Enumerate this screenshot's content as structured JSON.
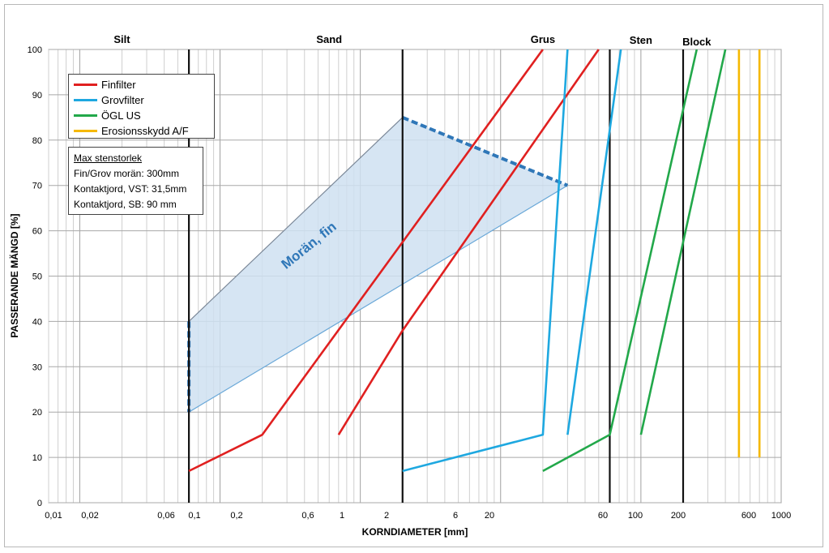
{
  "chart_data": {
    "type": "line",
    "xscale": "log",
    "xlabel": "KORNDIAMETER [mm]",
    "ylabel": "PASSERANDE MÄNGD [%]",
    "ylim": [
      0,
      100
    ],
    "yticks": [
      0,
      10,
      20,
      30,
      40,
      50,
      60,
      70,
      80,
      90,
      100
    ],
    "xtick_labels": [
      "0,01",
      "0,02",
      "0,06",
      "0,1",
      "0,2",
      "0,6",
      "1",
      "2",
      "6",
      "20",
      "60",
      "100",
      "200",
      "600",
      "1000"
    ],
    "grid": true,
    "legend_position": "top-left",
    "zones": [
      "Silt",
      "Sand",
      "Grus",
      "Sten",
      "Block"
    ],
    "shaded_region_label": "Morän, fin",
    "legend": [
      {
        "name": "Finfilter",
        "color": "#e02020"
      },
      {
        "name": "Grovfilter",
        "color": "#1ea8e0"
      },
      {
        "name": "ÖGL US",
        "color": "#22a84a"
      },
      {
        "name": "Erosionsskydd A/F",
        "color": "#f5b800"
      }
    ],
    "note": {
      "title": "Max stenstorlek",
      "lines": [
        "Fin/Grov morän: 300mm",
        "Kontaktjord, VST: 31,5mm",
        "Kontaktjord, SB: 90 mm"
      ]
    },
    "series": [
      {
        "name": "Finfilter",
        "color": "#e02020",
        "x": [
          0.06,
          0.2,
          20
        ],
        "y": [
          7,
          15,
          100
        ]
      },
      {
        "name": "Finfilter",
        "color": "#e02020",
        "x": [
          0.7,
          2,
          50
        ],
        "y": [
          15,
          38,
          100
        ]
      },
      {
        "name": "Grovfilter",
        "color": "#1ea8e0",
        "x": [
          2,
          20,
          30
        ],
        "y": [
          7,
          15,
          100
        ]
      },
      {
        "name": "Grovfilter",
        "color": "#1ea8e0",
        "x": [
          30,
          72
        ],
        "y": [
          15,
          100
        ]
      },
      {
        "name": "ÖGL US",
        "color": "#22a84a",
        "x": [
          20,
          60,
          250
        ],
        "y": [
          7,
          15,
          100
        ]
      },
      {
        "name": "ÖGL US",
        "color": "#22a84a",
        "x": [
          100,
          400
        ],
        "y": [
          15,
          100
        ]
      },
      {
        "name": "Erosionsskydd A/F",
        "color": "#f5b800",
        "x": [
          500,
          500
        ],
        "y": [
          10,
          100
        ]
      },
      {
        "name": "Erosionsskydd A/F",
        "color": "#f5b800",
        "x": [
          700,
          700
        ],
        "y": [
          10,
          100
        ]
      }
    ],
    "region": {
      "upper": {
        "x": [
          0.06,
          2,
          30
        ],
        "y": [
          40,
          85,
          70
        ]
      },
      "lower": {
        "x": [
          0.06,
          30
        ],
        "y": [
          20,
          70
        ]
      }
    },
    "boundaries_mm": [
      0.06,
      2,
      60,
      200
    ]
  }
}
